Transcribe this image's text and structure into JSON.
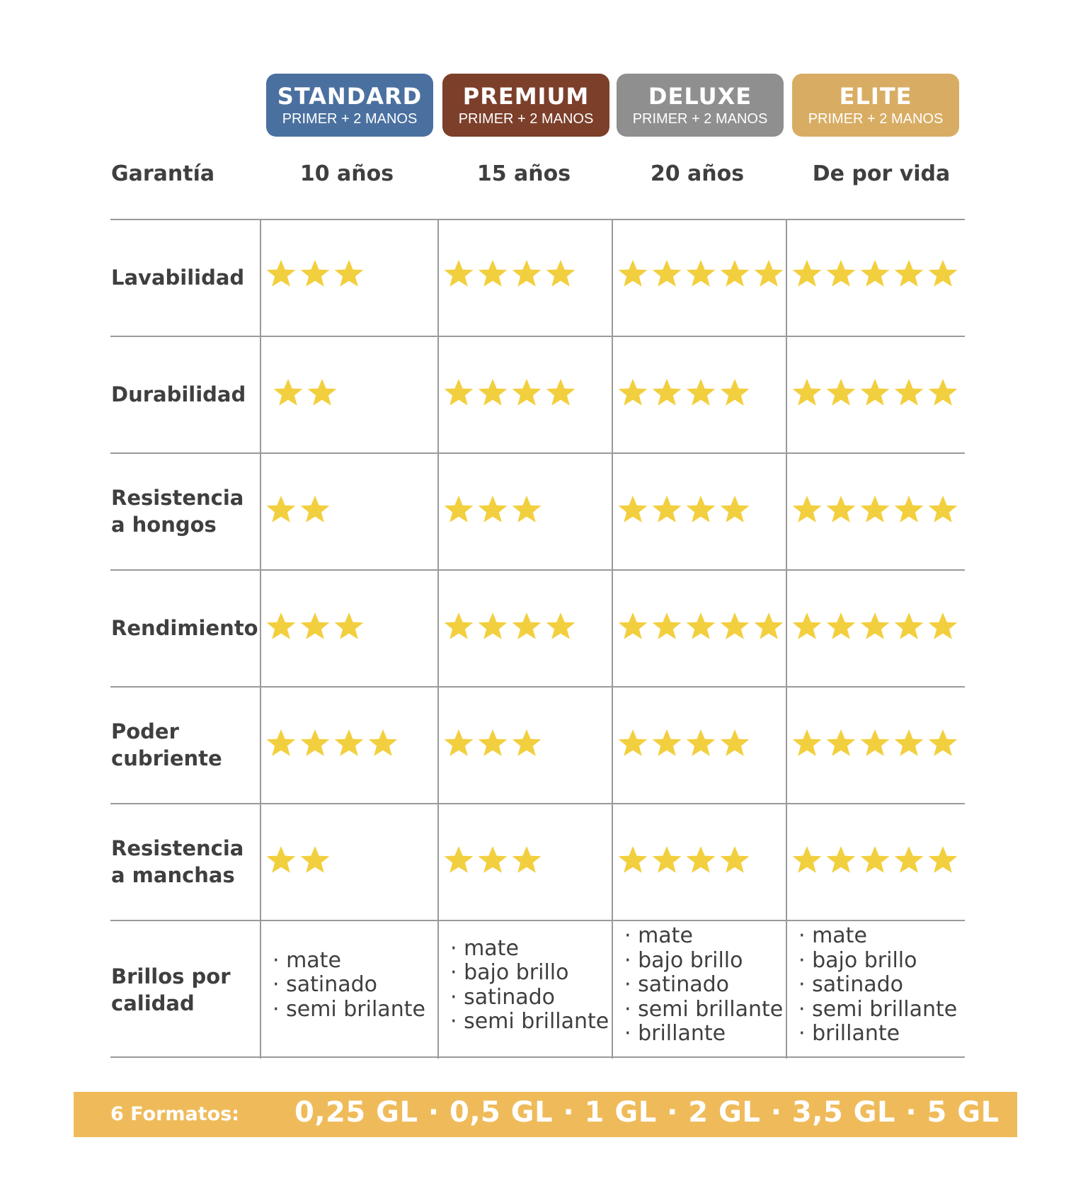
{
  "tiers": [
    {
      "name": "STANDARD",
      "subtitle": "PRIMER + 2 MANOS",
      "color": "#4a70a0"
    },
    {
      "name": "PREMIUM",
      "subtitle": "PRIMER + 2 MANOS",
      "color": "#7c3f2a"
    },
    {
      "name": "DELUXE",
      "subtitle": "PRIMER + 2 MANOS",
      "color": "#8f8f8f"
    },
    {
      "name": "ELITE",
      "subtitle": "PRIMER + 2 MANOS",
      "color": "#d8ad63"
    }
  ],
  "warranty": {
    "label": "Garantía",
    "values": [
      "10 años",
      "15 años",
      "20 años",
      "De por vida"
    ]
  },
  "star_color": "#f2cf3e",
  "star_icon": "star-icon",
  "ratings": [
    {
      "label_lines": [
        "Lavabilidad"
      ],
      "stars": [
        3,
        4,
        5,
        5
      ]
    },
    {
      "label_lines": [
        "Durabilidad"
      ],
      "stars": [
        2,
        4,
        4,
        5
      ]
    },
    {
      "label_lines": [
        "Resistencia",
        "a hongos"
      ],
      "stars": [
        2,
        3,
        4,
        5
      ]
    },
    {
      "label_lines": [
        "Rendimiento"
      ],
      "stars": [
        3,
        4,
        5,
        5
      ]
    },
    {
      "label_lines": [
        "Poder",
        "cubriente"
      ],
      "stars": [
        4,
        3,
        4,
        5
      ]
    },
    {
      "label_lines": [
        "Resistencia",
        "a manchas"
      ],
      "stars": [
        2,
        3,
        4,
        5
      ]
    }
  ],
  "gloss": {
    "label_lines": [
      "Brillos por",
      "calidad"
    ],
    "lists": [
      [
        "mate",
        "satinado",
        "semi brilante"
      ],
      [
        "mate",
        "bajo brillo",
        "satinado",
        "semi brillante"
      ],
      [
        "mate",
        "bajo brillo",
        "satinado",
        "semi brillante",
        "brillante"
      ],
      [
        "mate",
        "bajo brillo",
        "satinado",
        "semi brillante",
        "brillante"
      ]
    ]
  },
  "formats": {
    "label": "6 Formatos:",
    "values": "0,25 GL · 0,5 GL · 1 GL · 2 GL · 3,5 GL · 5 GL",
    "bar_color": "#efbb5a"
  }
}
